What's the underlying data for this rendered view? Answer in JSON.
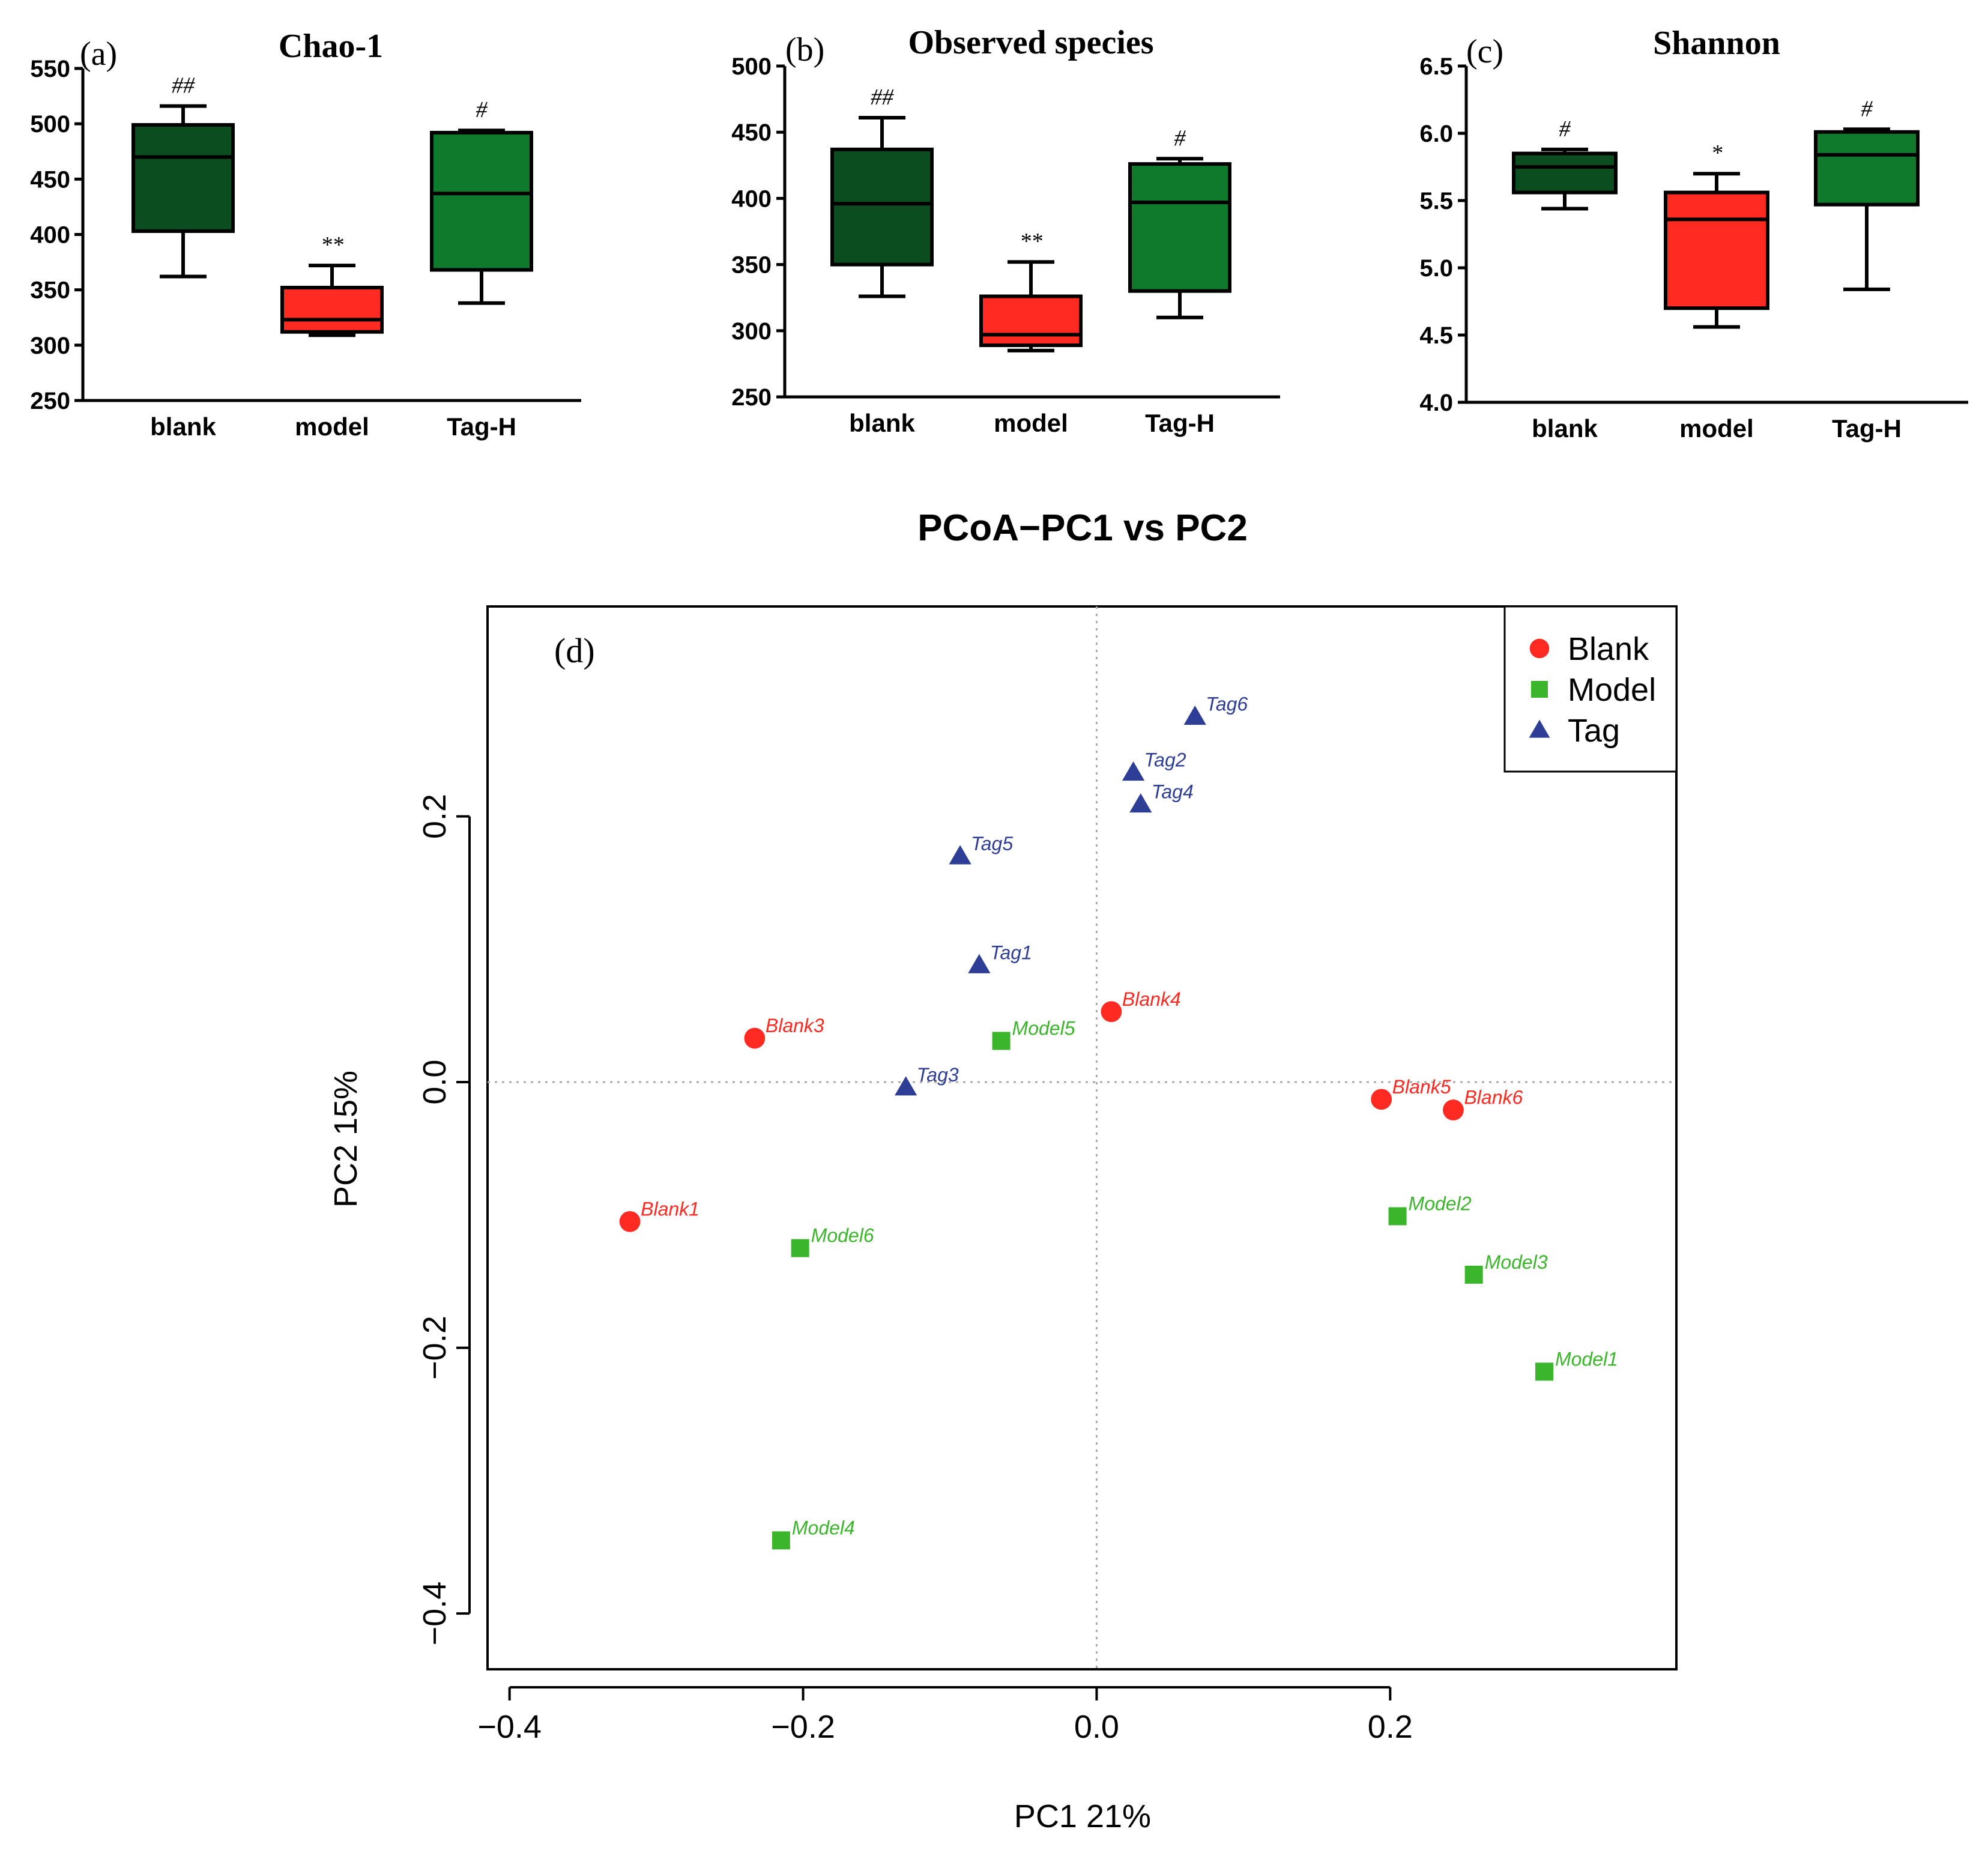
{
  "colors": {
    "blank": "#0b4d1e",
    "model": "#ff2a21",
    "tagh": "#0f7a2b",
    "pcoa_blank": "#ff2a21",
    "pcoa_model": "#3bb52b",
    "pcoa_tag": "#2e3e96",
    "ref_line": "#aaaaaa"
  },
  "chart_data": [
    {
      "type": "box",
      "panel_label": "(a)",
      "title": "Chao-1",
      "categories": [
        "blank",
        "model",
        "Tag-H"
      ],
      "ylim": [
        250,
        550
      ],
      "yticks": [
        250,
        300,
        350,
        400,
        450,
        500,
        550
      ],
      "boxes": [
        {
          "category": "blank",
          "min": 362,
          "q1": 403,
          "median": 470,
          "q3": 499,
          "max": 516,
          "annotation": "##",
          "color_key": "blank"
        },
        {
          "category": "model",
          "min": 309,
          "q1": 312,
          "median": 323,
          "q3": 352,
          "max": 372,
          "annotation": "**",
          "color_key": "model"
        },
        {
          "category": "Tag-H",
          "min": 338,
          "q1": 368,
          "median": 437,
          "q3": 492,
          "max": 494,
          "annotation": "#",
          "color_key": "tagh"
        }
      ]
    },
    {
      "type": "box",
      "panel_label": "(b)",
      "title": "Observed species",
      "categories": [
        "blank",
        "model",
        "Tag-H"
      ],
      "ylim": [
        250,
        500
      ],
      "yticks": [
        250,
        300,
        350,
        400,
        450,
        500
      ],
      "boxes": [
        {
          "category": "blank",
          "min": 326,
          "q1": 350,
          "median": 396,
          "q3": 437,
          "max": 461,
          "annotation": "##",
          "color_key": "blank"
        },
        {
          "category": "model",
          "min": 285,
          "q1": 289,
          "median": 297,
          "q3": 326,
          "max": 352,
          "annotation": "**",
          "color_key": "model"
        },
        {
          "category": "Tag-H",
          "min": 310,
          "q1": 330,
          "median": 397,
          "q3": 426,
          "max": 430,
          "annotation": "#",
          "color_key": "tagh"
        }
      ]
    },
    {
      "type": "box",
      "panel_label": "(c)",
      "title": "Shannon",
      "categories": [
        "blank",
        "model",
        "Tag-H"
      ],
      "ylim": [
        4.0,
        6.5
      ],
      "yticks": [
        "4.0",
        "4.5",
        "5.0",
        "5.5",
        "6.0",
        "6.5"
      ],
      "boxes": [
        {
          "category": "blank",
          "min": 5.44,
          "q1": 5.56,
          "median": 5.75,
          "q3": 5.85,
          "max": 5.88,
          "annotation": "#",
          "color_key": "blank"
        },
        {
          "category": "model",
          "min": 4.56,
          "q1": 4.7,
          "median": 5.36,
          "q3": 5.56,
          "max": 5.7,
          "annotation": "*",
          "color_key": "model"
        },
        {
          "category": "Tag-H",
          "min": 4.84,
          "q1": 5.47,
          "median": 5.84,
          "q3": 6.01,
          "max": 6.03,
          "annotation": "#",
          "color_key": "tagh"
        }
      ]
    },
    {
      "type": "scatter",
      "panel_label": "(d)",
      "title": "PCoA−PC1 vs PC2",
      "xlabel": "PC1 21%",
      "ylabel": "PC2 15%",
      "xlim": [
        -0.415,
        0.395
      ],
      "ylim": [
        -0.442,
        0.358
      ],
      "xticks": [
        "−0.4",
        "−0.2",
        "0.0",
        "0.2"
      ],
      "yticks": [
        "−0.4",
        "−0.2",
        "0.0",
        "0.2"
      ],
      "legend": "top-right",
      "series": [
        {
          "name": "Blank",
          "marker": "circle",
          "color_key": "pcoa_blank",
          "points": [
            {
              "label": "Blank1",
              "x": -0.318,
              "y": -0.105
            },
            {
              "label": "Blank3",
              "x": -0.233,
              "y": 0.033
            },
            {
              "label": "Blank4",
              "x": 0.01,
              "y": 0.053
            },
            {
              "label": "Blank5",
              "x": 0.194,
              "y": -0.013
            },
            {
              "label": "Blank6",
              "x": 0.243,
              "y": -0.021
            }
          ]
        },
        {
          "name": "Model",
          "marker": "square",
          "color_key": "pcoa_model",
          "points": [
            {
              "label": "Model1",
              "x": 0.305,
              "y": -0.218
            },
            {
              "label": "Model2",
              "x": 0.205,
              "y": -0.101
            },
            {
              "label": "Model3",
              "x": 0.257,
              "y": -0.145
            },
            {
              "label": "Model4",
              "x": -0.215,
              "y": -0.345
            },
            {
              "label": "Model5",
              "x": -0.065,
              "y": 0.031
            },
            {
              "label": "Model6",
              "x": -0.202,
              "y": -0.125
            }
          ]
        },
        {
          "name": "Tag",
          "marker": "triangle",
          "color_key": "pcoa_tag",
          "points": [
            {
              "label": "Tag1",
              "x": -0.08,
              "y": 0.088
            },
            {
              "label": "Tag2",
              "x": 0.025,
              "y": 0.233
            },
            {
              "label": "Tag3",
              "x": -0.13,
              "y": -0.004
            },
            {
              "label": "Tag4",
              "x": 0.03,
              "y": 0.209
            },
            {
              "label": "Tag5",
              "x": -0.093,
              "y": 0.17
            },
            {
              "label": "Tag6",
              "x": 0.067,
              "y": 0.275
            }
          ]
        }
      ]
    }
  ]
}
